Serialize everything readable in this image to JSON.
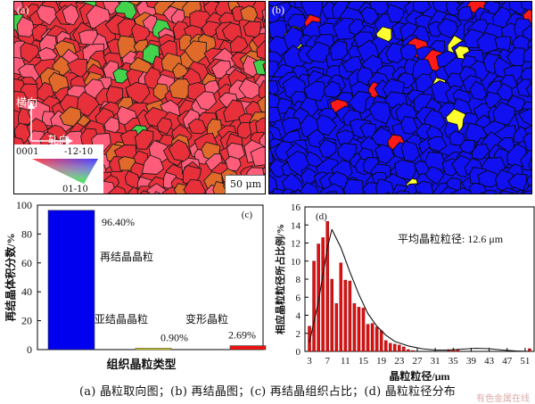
{
  "panel_a": {
    "label": "(a)",
    "axis_transverse": "横向",
    "axis_rolling": "轧向",
    "ipf_0001": "0001",
    "ipf_1210": "-12-10",
    "ipf_0110": "01-10",
    "scale_bar": "50 μm",
    "colors": {
      "base": "#e8303a",
      "alt1": "#ff5c7a",
      "alt2": "#e06a2a",
      "green": "#43d24b",
      "outline": "#1a1a1a"
    }
  },
  "panel_b": {
    "label": "(b)",
    "colors": {
      "base": "#1010f0",
      "red": "#ff1a1a",
      "yellow": "#ffff30",
      "outline": "#0a0a0a"
    }
  },
  "chart_data": [
    {
      "type": "bar",
      "label": "(c)",
      "categories": [
        "再结晶晶粒",
        "亚结晶晶粒",
        "变形晶粒"
      ],
      "values": [
        96.4,
        0.9,
        2.69
      ],
      "value_labels": [
        "96.40%",
        "0.90%",
        "2.69%"
      ],
      "colors": [
        "#0000ee",
        "#ffff00",
        "#ee1111"
      ],
      "xlabel": "组织晶粒类型",
      "ylabel": "再结晶体积分数/%",
      "ylim": [
        0,
        100
      ],
      "yticks": [
        0,
        20,
        40,
        60,
        80,
        100
      ],
      "grid": false
    },
    {
      "type": "bar",
      "label": "(d)",
      "x": [
        3,
        4,
        5,
        6,
        7,
        8,
        9,
        10,
        11,
        12,
        13,
        14,
        15,
        16,
        17,
        18,
        19,
        20,
        21,
        22,
        23,
        24,
        25,
        26,
        27,
        28,
        29,
        30,
        31,
        32,
        33,
        34,
        35,
        36,
        37,
        38,
        39,
        40,
        41,
        42,
        43,
        44,
        45,
        46,
        47,
        48,
        49,
        50,
        51,
        52
      ],
      "values": [
        2.8,
        10.0,
        11.9,
        12.6,
        14.4,
        8.0,
        5.3,
        9.8,
        7.9,
        7.8,
        5.3,
        4.9,
        4.8,
        3.0,
        3.1,
        2.7,
        2.3,
        1.2,
        0.9,
        0.8,
        0.7,
        0.5,
        0.2,
        0.1,
        0,
        0,
        0,
        0,
        0,
        0,
        0,
        0.2,
        0.2,
        0.2,
        0,
        0,
        0,
        0,
        0,
        0,
        0,
        0,
        0,
        0,
        0,
        0,
        0,
        0,
        0,
        0.3
      ],
      "fit_line": {
        "x": [
          3,
          5,
          7,
          8,
          10,
          12,
          14,
          16,
          18,
          20,
          22,
          25,
          28,
          31,
          34,
          37,
          40,
          43,
          46,
          49,
          52
        ],
        "y": [
          1,
          5.5,
          11.5,
          13.5,
          11.5,
          8.8,
          6.3,
          4.2,
          2.8,
          1.8,
          1.1,
          0.6,
          0.3,
          0.15,
          0.15,
          0.25,
          0.35,
          0.3,
          0.15,
          0.05,
          0
        ]
      },
      "bar_color": "#dd1111",
      "annotation": "平均晶粒粒径: 12.6 μm",
      "xlabel": "晶粒粒径/μm",
      "ylabel": "相应晶粒粒径所占比例/%",
      "xticks": [
        3,
        7,
        11,
        15,
        19,
        23,
        27,
        31,
        35,
        39,
        43,
        47,
        51
      ],
      "yticks": [
        0,
        2,
        4,
        6,
        8,
        10,
        12,
        14,
        16
      ],
      "ylim": [
        0,
        16
      ],
      "xlim": [
        2,
        53
      ]
    }
  ],
  "caption": "(a) 晶粒取向图；(b) 再结晶图；(c) 再结晶组织占比；(d) 晶粒粒径分布",
  "watermark": "有色金属在线"
}
